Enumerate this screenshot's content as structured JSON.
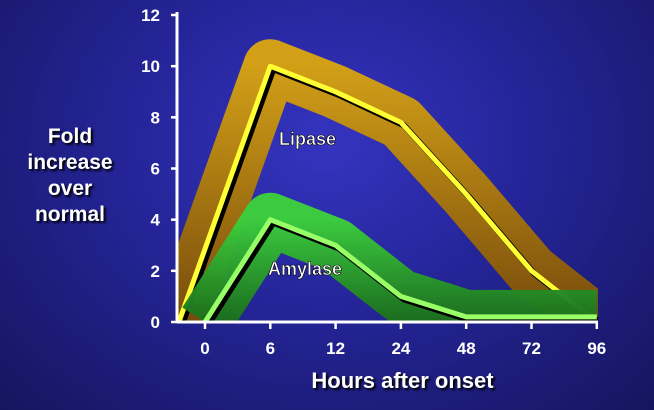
{
  "chart_data": {
    "type": "line",
    "xlabel": "Hours after onset",
    "ylabel_lines": [
      "Fold",
      "increase",
      "over",
      "normal"
    ],
    "categories": [
      "0",
      "6",
      "12",
      "24",
      "48",
      "72",
      "96"
    ],
    "ylim": [
      0,
      12
    ],
    "yticks": [
      0,
      2,
      4,
      6,
      8,
      10,
      12
    ],
    "series": [
      {
        "name": "Lipase",
        "color": "#ffff33",
        "band_color": "#c8950e",
        "start_x": -0.4,
        "values": [
          null,
          10,
          9,
          7.8,
          5,
          2,
          0
        ]
      },
      {
        "name": "Amylase",
        "color": "#99ff66",
        "band_color": "#2fb82f",
        "start_x": 0,
        "values": [
          0,
          4,
          3,
          1,
          0.2,
          0.2,
          0.2
        ]
      }
    ],
    "grid": false,
    "background": "#242497"
  }
}
